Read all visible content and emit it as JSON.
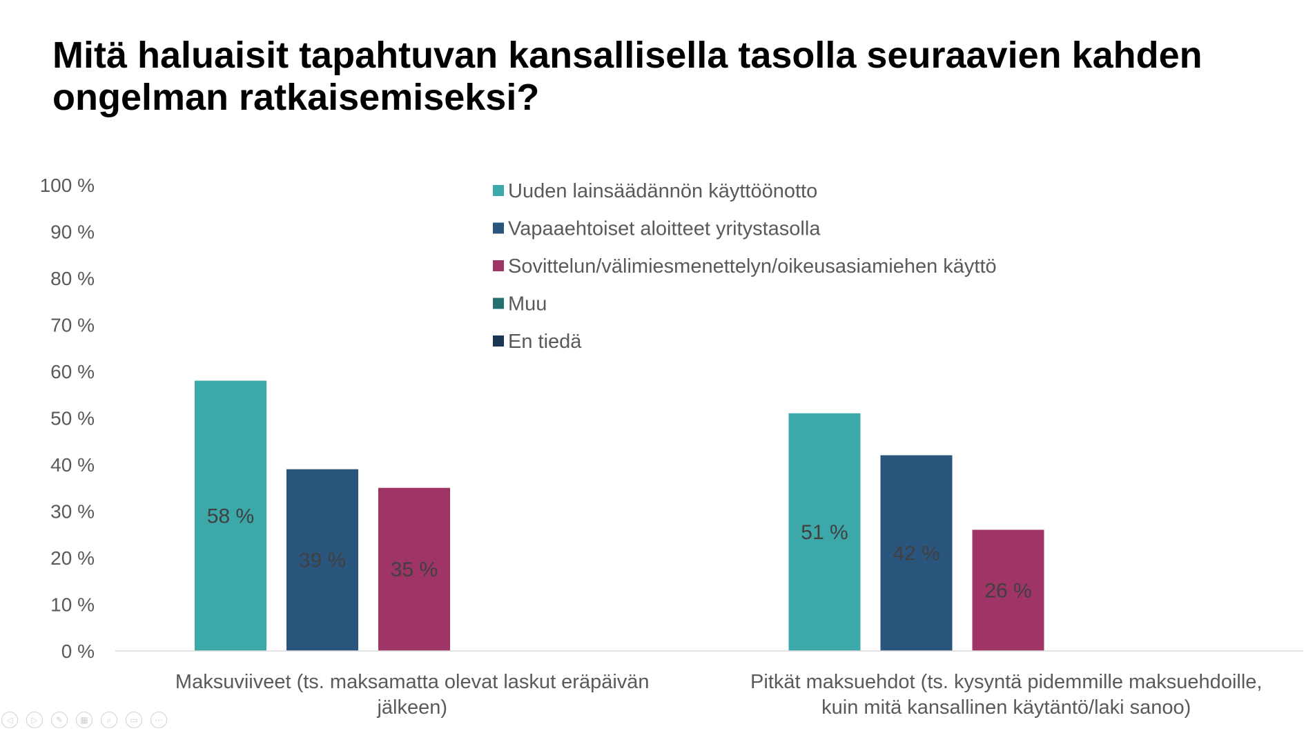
{
  "title": "Mitä haluaisit tapahtuvan kansallisella tasolla seuraavien kahden ongelman ratkaisemiseksi?",
  "chart_data": {
    "type": "bar",
    "title": "Mitä haluaisit tapahtuvan kansallisella tasolla seuraavien kahden ongelman ratkaisemiseksi?",
    "categories": [
      [
        "Maksuviiveet (ts. maksamatta olevat laskut eräpäivän",
        "jälkeen)"
      ],
      [
        "Pitkät maksuehdot (ts. kysyntä pidemmille maksuehdoille,",
        "kuin mitä kansallinen käytäntö/laki sanoo)"
      ]
    ],
    "series": [
      {
        "name": "Uuden lainsäädännön käyttöönotto",
        "color": "#3ca8a9",
        "values": [
          58,
          51
        ],
        "labels": [
          "58 %",
          "51 %"
        ]
      },
      {
        "name": "Vapaaehtoiset aloitteet yritystasolla",
        "color": "#2a557c",
        "values": [
          39,
          42
        ],
        "labels": [
          "39 %",
          "42 %"
        ]
      },
      {
        "name": "Sovittelun/välimiesmenettelyn/oikeusasiamiehen käyttö",
        "color": "#9f3466",
        "values": [
          35,
          26
        ],
        "labels": [
          "35 %",
          "26 %"
        ]
      },
      {
        "name": "Muu",
        "color": "#25706c",
        "values": [
          null,
          null
        ],
        "labels": [
          null,
          null
        ]
      },
      {
        "name": "En tiedä",
        "color": "#1c3552",
        "values": [
          null,
          null
        ],
        "labels": [
          null,
          null
        ]
      }
    ],
    "ylim": [
      0,
      100
    ],
    "yticks": [
      "0 %",
      "10 %",
      "20 %",
      "30 %",
      "40 %",
      "50 %",
      "60 %",
      "70 %",
      "80 %",
      "90 %",
      "100 %"
    ],
    "grid": false,
    "legend_position": "top-center",
    "data_label_color": "#404040"
  },
  "controls": [
    {
      "name": "previous-slide-icon",
      "glyph": "◁"
    },
    {
      "name": "next-slide-icon",
      "glyph": "▷"
    },
    {
      "name": "pen-icon",
      "glyph": "✎"
    },
    {
      "name": "slides-grid-icon",
      "glyph": "▦"
    },
    {
      "name": "zoom-icon",
      "glyph": "⌕"
    },
    {
      "name": "subtitles-icon",
      "glyph": "▭"
    },
    {
      "name": "more-options-icon",
      "glyph": "⋯"
    }
  ]
}
